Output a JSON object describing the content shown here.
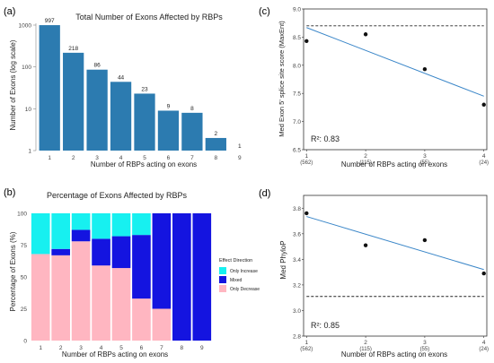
{
  "colors": {
    "bar": "#2c7bb0",
    "cyan": "#17f0f0",
    "blue": "#1414e0",
    "pink": "#ffb6c1",
    "fit": "#3a86c8",
    "point": "#111111",
    "ref": "#222222"
  },
  "chart_data": [
    {
      "panel": "(a)",
      "type": "bar",
      "title": "Total Number of Exons Affected by RBPs",
      "xlabel": "Number of RBPs acting on exons",
      "ylabel": "Number of Exons (log scale)",
      "yscale": "log",
      "ylim": [
        1,
        1000
      ],
      "yticks": [
        1,
        10,
        100,
        1000
      ],
      "yticklabels": [
        "1",
        "10",
        "100",
        "1000"
      ],
      "categories": [
        "1",
        "2",
        "3",
        "4",
        "5",
        "6",
        "7",
        "8",
        "9"
      ],
      "values": [
        997,
        218,
        86,
        44,
        23,
        9,
        8,
        2,
        1
      ],
      "data_labels": [
        "997",
        "218",
        "86",
        "44",
        "23",
        "9",
        "8",
        "2",
        "1"
      ],
      "grid": false
    },
    {
      "panel": "(b)",
      "type": "bar",
      "stacked": true,
      "title": "Percentage of Exons Affected by RBPs",
      "xlabel": "Number of RBPs acting on exons",
      "ylabel": "Percentage of Exons (%)",
      "ylim": [
        0,
        100
      ],
      "yticks": [
        0,
        25,
        50,
        75,
        100
      ],
      "categories": [
        "1",
        "2",
        "3",
        "4",
        "5",
        "6",
        "7",
        "8",
        "9"
      ],
      "legend_title": "Effect Direction",
      "legend_position": "right",
      "series": [
        {
          "name": "Only Decrease",
          "color_key": "pink",
          "values": [
            68,
            67,
            78,
            59,
            57,
            33,
            25,
            0,
            0
          ]
        },
        {
          "name": "Mixed",
          "color_key": "blue",
          "values": [
            0,
            5,
            9,
            21,
            25,
            50,
            75,
            100,
            100
          ]
        },
        {
          "name": "Only Increase",
          "color_key": "cyan",
          "values": [
            32,
            28,
            13,
            20,
            18,
            17,
            0,
            0,
            0
          ]
        }
      ],
      "legend_order": [
        "Only Increase",
        "Mixed",
        "Only Decrease"
      ]
    },
    {
      "panel": "(c)",
      "type": "scatter",
      "title": "",
      "xlabel": "Number of RBPs acting on exons",
      "ylabel": "Med Exon 5' splice site score (MaxEnt)",
      "xlim": [
        0.95,
        4.05
      ],
      "ylim": [
        6.5,
        9.0
      ],
      "yticks": [
        6.5,
        7.0,
        7.5,
        8.0,
        8.5,
        9.0
      ],
      "yticklabels": [
        "6.5",
        "7.0",
        "7.5",
        "8.0",
        "8.5",
        "9.0"
      ],
      "xticks": [
        1,
        2,
        3,
        4
      ],
      "xticklabels": [
        "1",
        "2",
        "3",
        "4"
      ],
      "xsublabels": [
        "(562)",
        "(115)",
        "(55)",
        "(24)"
      ],
      "x": [
        1,
        2,
        3,
        4
      ],
      "y": [
        8.43,
        8.55,
        7.93,
        7.3
      ],
      "fit": {
        "x": [
          1,
          4
        ],
        "y": [
          8.67,
          7.45
        ]
      },
      "reference": 8.7,
      "annotation": "R²: 0.83"
    },
    {
      "panel": "(d)",
      "type": "scatter",
      "title": "",
      "xlabel": "Number of RBPs acting on exons",
      "ylabel": "Med PhyloP",
      "xlim": [
        0.95,
        4.05
      ],
      "ylim": [
        2.8,
        3.9
      ],
      "yticks": [
        2.8,
        3.0,
        3.2,
        3.4,
        3.6,
        3.8
      ],
      "yticklabels": [
        "2.8",
        "3.0",
        "3.2",
        "3.4",
        "3.6",
        "3.8"
      ],
      "xticks": [
        1,
        2,
        3,
        4
      ],
      "xticklabels": [
        "1",
        "2",
        "3",
        "4"
      ],
      "xsublabels": [
        "(562)",
        "(115)",
        "(55)",
        "(24)"
      ],
      "x": [
        1,
        2,
        3,
        4
      ],
      "y": [
        3.76,
        3.51,
        3.55,
        3.29
      ],
      "fit": {
        "x": [
          1,
          4
        ],
        "y": [
          3.735,
          3.32
        ]
      },
      "reference": 3.11,
      "annotation": "R²: 0.85"
    }
  ]
}
